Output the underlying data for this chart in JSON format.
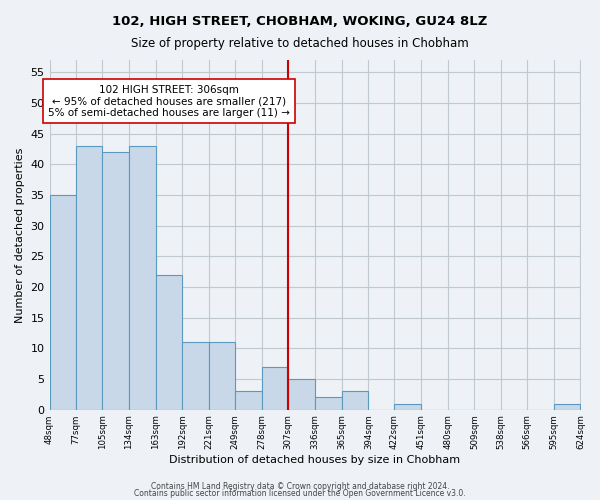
{
  "title": "102, HIGH STREET, CHOBHAM, WOKING, GU24 8LZ",
  "subtitle": "Size of property relative to detached houses in Chobham",
  "xlabel": "Distribution of detached houses by size in Chobham",
  "ylabel": "Number of detached properties",
  "bar_edges": [
    48,
    77,
    105,
    134,
    163,
    192,
    221,
    249,
    278,
    307,
    336,
    365,
    394,
    422,
    451,
    480,
    509,
    538,
    566,
    595,
    624
  ],
  "bar_heights": [
    35,
    43,
    42,
    43,
    22,
    11,
    11,
    3,
    7,
    5,
    2,
    3,
    0,
    1,
    0,
    0,
    0,
    0,
    0,
    1
  ],
  "bar_color": "#c8d8e8",
  "bar_edge_color": "#5a9abf",
  "grid_color": "#c0c8d0",
  "vline_x": 307,
  "vline_color": "#cc0000",
  "annotation_text": "102 HIGH STREET: 306sqm\n← 95% of detached houses are smaller (217)\n5% of semi-detached houses are larger (11) →",
  "annotation_box_edgecolor": "#cc0000",
  "ylim": [
    0,
    57
  ],
  "yticks": [
    0,
    5,
    10,
    15,
    20,
    25,
    30,
    35,
    40,
    45,
    50,
    55
  ],
  "tick_labels": [
    "48sqm",
    "77sqm",
    "105sqm",
    "134sqm",
    "163sqm",
    "192sqm",
    "221sqm",
    "249sqm",
    "278sqm",
    "307sqm",
    "336sqm",
    "365sqm",
    "394sqm",
    "422sqm",
    "451sqm",
    "480sqm",
    "509sqm",
    "538sqm",
    "566sqm",
    "595sqm",
    "624sqm"
  ],
  "footer_line1": "Contains HM Land Registry data © Crown copyright and database right 2024.",
  "footer_line2": "Contains public sector information licensed under the Open Government Licence v3.0.",
  "bg_color": "#eef2f6"
}
